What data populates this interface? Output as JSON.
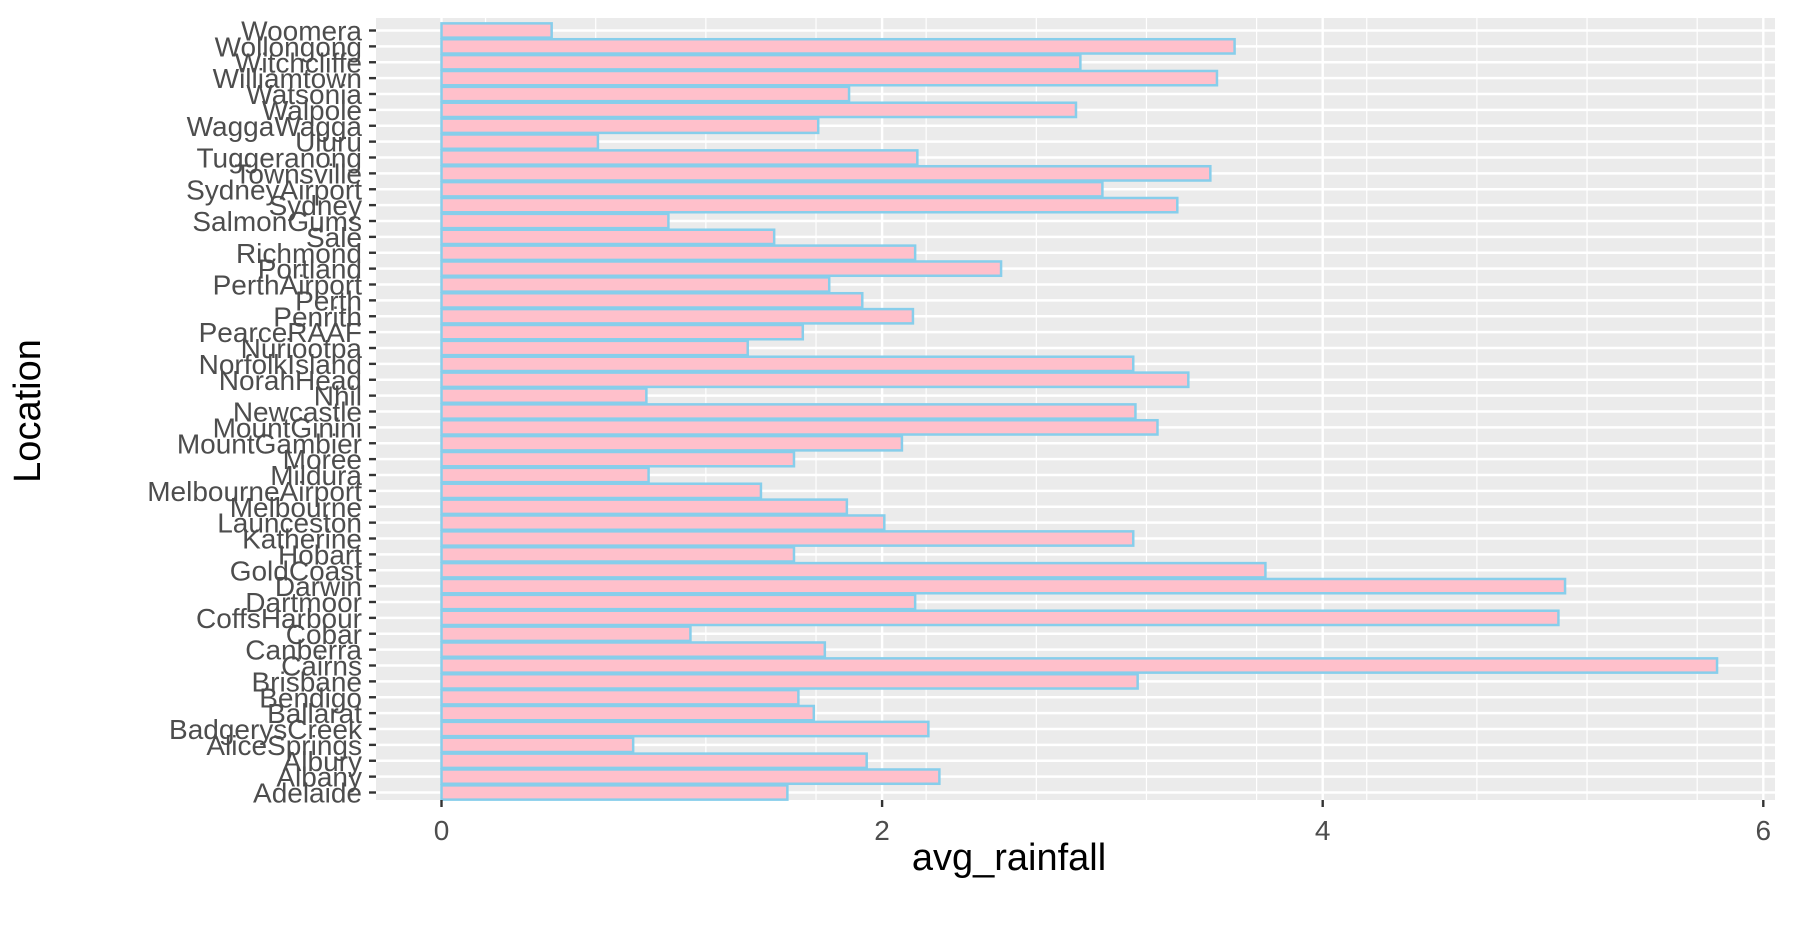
{
  "chart_data": {
    "type": "bar",
    "orientation": "horizontal",
    "xlabel": "avg_rainfall",
    "ylabel": "Location",
    "xlim": [
      -0.3,
      6.05
    ],
    "x_ticks": [
      0,
      2,
      4,
      6
    ],
    "x_tick_labels": [
      "0",
      "2",
      "4",
      "6"
    ],
    "grid": true,
    "legend": "none",
    "colors": {
      "panel_background": "#ebebeb",
      "grid": "#ffffff",
      "bar_fill": "#ffc0cb",
      "bar_outline": "#87ceeb",
      "tick_label": "#4d4d4d",
      "tick_mark": "#333333",
      "axis_title": "#000000"
    },
    "categories": [
      "Adelaide",
      "Albany",
      "Albury",
      "AliceSprings",
      "BadgerysCreek",
      "Ballarat",
      "Bendigo",
      "Brisbane",
      "Cairns",
      "Canberra",
      "Cobar",
      "CoffsHarbour",
      "Dartmoor",
      "Darwin",
      "GoldCoast",
      "Hobart",
      "Katherine",
      "Launceston",
      "Melbourne",
      "MelbourneAirport",
      "Mildura",
      "Moree",
      "MountGambier",
      "MountGinini",
      "Newcastle",
      "Nhil",
      "NorahHead",
      "NorfolkIsland",
      "Nuriootpa",
      "PearceRAAF",
      "Penrith",
      "Perth",
      "PerthAirport",
      "Portland",
      "Richmond",
      "Sale",
      "SalmonGums",
      "Sydney",
      "SydneyAirport",
      "Townsville",
      "Tuggeranong",
      "Uluru",
      "WaggaWagga",
      "Walpole",
      "Watsonia",
      "Williamtown",
      "Witchcliffe",
      "Wollongong",
      "Woomera"
    ],
    "values": [
      1.57,
      2.26,
      1.93,
      0.87,
      2.21,
      1.69,
      1.62,
      3.16,
      5.79,
      1.74,
      1.13,
      5.07,
      2.15,
      5.1,
      3.74,
      1.6,
      3.14,
      2.01,
      1.84,
      1.45,
      0.94,
      1.6,
      2.09,
      3.25,
      3.15,
      0.93,
      3.39,
      3.14,
      1.39,
      1.64,
      2.14,
      1.91,
      1.76,
      2.54,
      2.15,
      1.51,
      1.03,
      3.34,
      3.0,
      3.49,
      2.16,
      0.71,
      1.71,
      2.88,
      1.85,
      3.52,
      2.9,
      3.6,
      0.5
    ]
  }
}
